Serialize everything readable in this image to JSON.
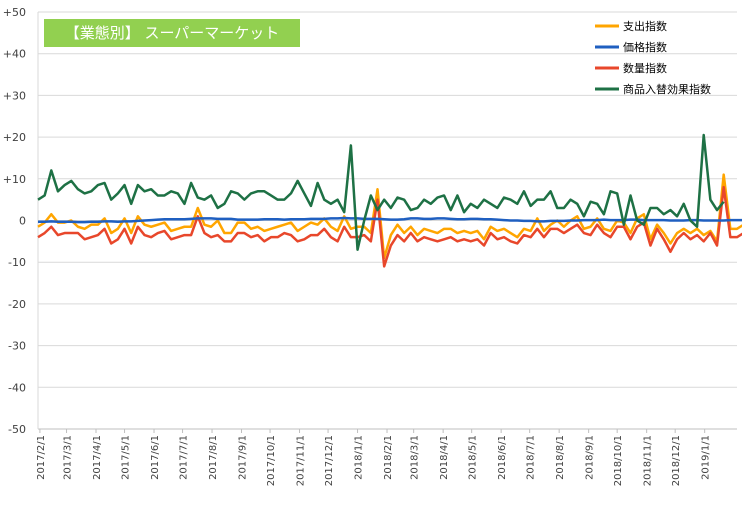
{
  "chart_data": {
    "type": "line",
    "title": "【業態別】 スーパーマーケット",
    "title_bg_color": "#92d050",
    "ylim": [
      -50,
      50
    ],
    "y_ticks": [
      50,
      40,
      30,
      20,
      10,
      0,
      -10,
      -20,
      -30,
      -40,
      -50
    ],
    "y_tick_labels": [
      "+50",
      "+40",
      "+30",
      "+20",
      "+10",
      "0",
      "-10",
      "-20",
      "-30",
      "-40",
      "-50"
    ],
    "x_tick_labels": [
      "2017/2/1",
      "2017/3/1",
      "2017/4/1",
      "2017/5/1",
      "2017/6/1",
      "2017/7/1",
      "2017/8/1",
      "2017/9/1",
      "2017/10/1",
      "2017/11/1",
      "2017/12/1",
      "2018/1/1",
      "2018/2/1",
      "2018/3/1",
      "2018/4/1",
      "2018/5/1",
      "2018/6/1",
      "2018/7/1",
      "2018/8/1",
      "2018/9/1",
      "2018/10/1",
      "2018/11/1",
      "2018/12/1",
      "2019/1/1"
    ],
    "x_start": "2017/1/30",
    "x_end": "2019/2/4",
    "x_step_days": 7,
    "grid": true,
    "legend_position": "top-right",
    "series": [
      {
        "name": "支出指数",
        "color": "#ffa500",
        "values": [
          -1.5,
          -0.5,
          1.5,
          -0.5,
          -0.5,
          0,
          -1.5,
          -2,
          -1,
          -1,
          0.5,
          -3,
          -2,
          0.5,
          -3,
          1,
          -1,
          -1.5,
          -1,
          -0.5,
          -2.5,
          -2,
          -1.5,
          -1.5,
          3,
          -1,
          -1.5,
          0,
          -3,
          -3,
          -0.5,
          -0.5,
          -2,
          -1.5,
          -2.5,
          -2,
          -1.5,
          -1,
          -0.5,
          -2.5,
          -1.5,
          -0.5,
          -1,
          0.5,
          -1.5,
          -2.5,
          1,
          -2,
          -1.5,
          -1.5,
          -3,
          7.5,
          -9,
          -3.5,
          -1,
          -3,
          -1.5,
          -3.5,
          -2,
          -2.5,
          -3,
          -2,
          -2,
          -3,
          -2.5,
          -3,
          -2.5,
          -4.5,
          -1.5,
          -2.5,
          -2,
          -3,
          -4,
          -2,
          -2.5,
          0.5,
          -2.5,
          -1,
          0,
          -1.5,
          0,
          1,
          -2,
          -1.5,
          0.5,
          -2,
          -2.5,
          0,
          -0.5,
          -3,
          0.5,
          1.5,
          -4.5,
          -1,
          -3,
          -5.5,
          -3,
          -2,
          -3,
          -2,
          -3.5,
          -2.5,
          -5,
          11,
          -2,
          -2,
          -1
        ]
      },
      {
        "name": "価格指数",
        "color": "#1f5fc0",
        "values": [
          -0.3,
          -0.3,
          -0.2,
          -0.3,
          -0.3,
          -0.3,
          -0.4,
          -0.4,
          -0.3,
          -0.3,
          -0.2,
          -0.2,
          -0.3,
          -0.2,
          -0.2,
          -0.1,
          0,
          0.1,
          0.2,
          0.3,
          0.3,
          0.3,
          0.3,
          0.4,
          0.5,
          0.5,
          0.5,
          0.4,
          0.4,
          0.4,
          0.2,
          0.2,
          0.2,
          0.2,
          0.3,
          0.3,
          0.3,
          0.2,
          0.3,
          0.3,
          0.3,
          0.4,
          0.4,
          0.4,
          0.5,
          0.5,
          0.6,
          0.5,
          0.5,
          0.4,
          0.4,
          0.4,
          0.3,
          0.2,
          0.2,
          0.3,
          0.5,
          0.5,
          0.4,
          0.4,
          0.5,
          0.5,
          0.4,
          0.3,
          0.3,
          0.4,
          0.4,
          0.3,
          0.3,
          0.2,
          0.1,
          0,
          0,
          -0.1,
          -0.1,
          -0.2,
          -0.2,
          -0.1,
          -0.1,
          -0.1,
          0,
          0,
          0.1,
          0.1,
          0.1,
          0.2,
          0.1,
          0.1,
          0.1,
          0.2,
          0.2,
          0.1,
          0.1,
          0.1,
          0.1,
          0,
          0,
          0,
          0.1,
          0.1,
          0,
          0,
          0,
          0,
          0.1,
          0.1,
          0.1
        ]
      },
      {
        "name": "数量指数",
        "color": "#e8472b",
        "values": [
          -4,
          -3,
          -1.5,
          -3.5,
          -3,
          -3,
          -3,
          -4.5,
          -4,
          -3.5,
          -2,
          -5.5,
          -4.5,
          -2,
          -5.5,
          -1.5,
          -3.5,
          -4,
          -3,
          -2.5,
          -4.5,
          -4,
          -3.5,
          -3.5,
          1,
          -3,
          -4,
          -3.5,
          -5,
          -5,
          -3,
          -3,
          -4,
          -3.5,
          -5,
          -4,
          -4,
          -3,
          -3.5,
          -5,
          -4.5,
          -3.5,
          -3.5,
          -2,
          -4,
          -5,
          -1.5,
          -4,
          -4,
          -3.5,
          -5,
          5,
          -11,
          -6,
          -3.5,
          -5,
          -3,
          -5,
          -4,
          -4.5,
          -5,
          -4.5,
          -4,
          -5,
          -4.5,
          -5,
          -4.5,
          -6,
          -3,
          -4.5,
          -4,
          -5,
          -5.5,
          -3.5,
          -4,
          -2,
          -4,
          -2,
          -2,
          -3,
          -2,
          -1,
          -3,
          -3.5,
          -1,
          -3,
          -4,
          -1.5,
          -1.5,
          -4.5,
          -1.5,
          -0.5,
          -6,
          -2,
          -4.5,
          -7.5,
          -4.5,
          -3,
          -4.5,
          -3.5,
          -5,
          -3,
          -6,
          8,
          -4,
          -4,
          -3
        ]
      },
      {
        "name": "商品入替効果指数",
        "color": "#1e7145",
        "values": [
          5,
          6,
          12,
          7,
          8.5,
          9.5,
          7.5,
          6.5,
          7,
          8.5,
          9,
          5,
          6.5,
          8.5,
          4,
          8.5,
          7,
          7.5,
          6,
          6,
          7,
          6.5,
          4,
          9,
          5.5,
          5,
          6,
          3,
          4,
          7,
          6.5,
          5,
          6.5,
          7,
          7,
          6,
          5,
          5,
          6.5,
          9.5,
          6.5,
          3.5,
          9,
          5,
          4,
          5,
          2,
          18,
          -7,
          0,
          6,
          2.5,
          5,
          3,
          5.5,
          5,
          2.5,
          3,
          5,
          4,
          5.5,
          6,
          2.5,
          6,
          2,
          4,
          3,
          5,
          4,
          3,
          5.5,
          5,
          4,
          7,
          3.5,
          5,
          5,
          7,
          3,
          3,
          5,
          4,
          1,
          4.5,
          4,
          1.5,
          7,
          6.5,
          -1,
          6,
          0,
          -1,
          3,
          3,
          1.5,
          2.5,
          1,
          4,
          0,
          -1.5,
          20.5,
          5,
          2.5,
          4.5
        ]
      }
    ]
  }
}
